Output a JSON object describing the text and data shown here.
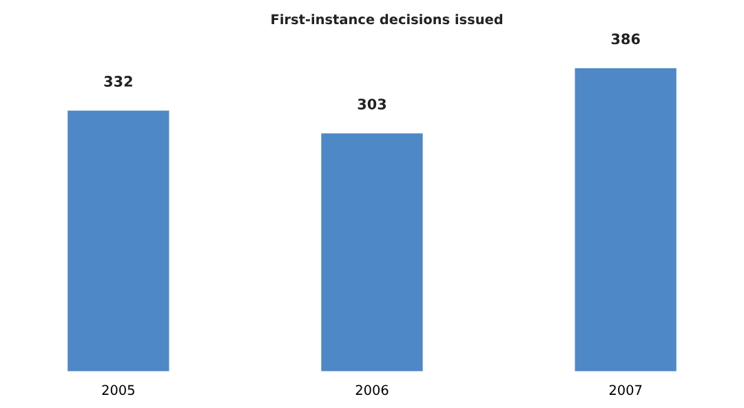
{
  "chart_data": {
    "type": "bar",
    "title": "First-instance decisions issued",
    "categories": [
      "2005",
      "2006",
      "2007"
    ],
    "values": [
      332,
      303,
      386
    ],
    "color": "#4f88c6",
    "data_labels": true,
    "grid": false,
    "legend": false
  }
}
